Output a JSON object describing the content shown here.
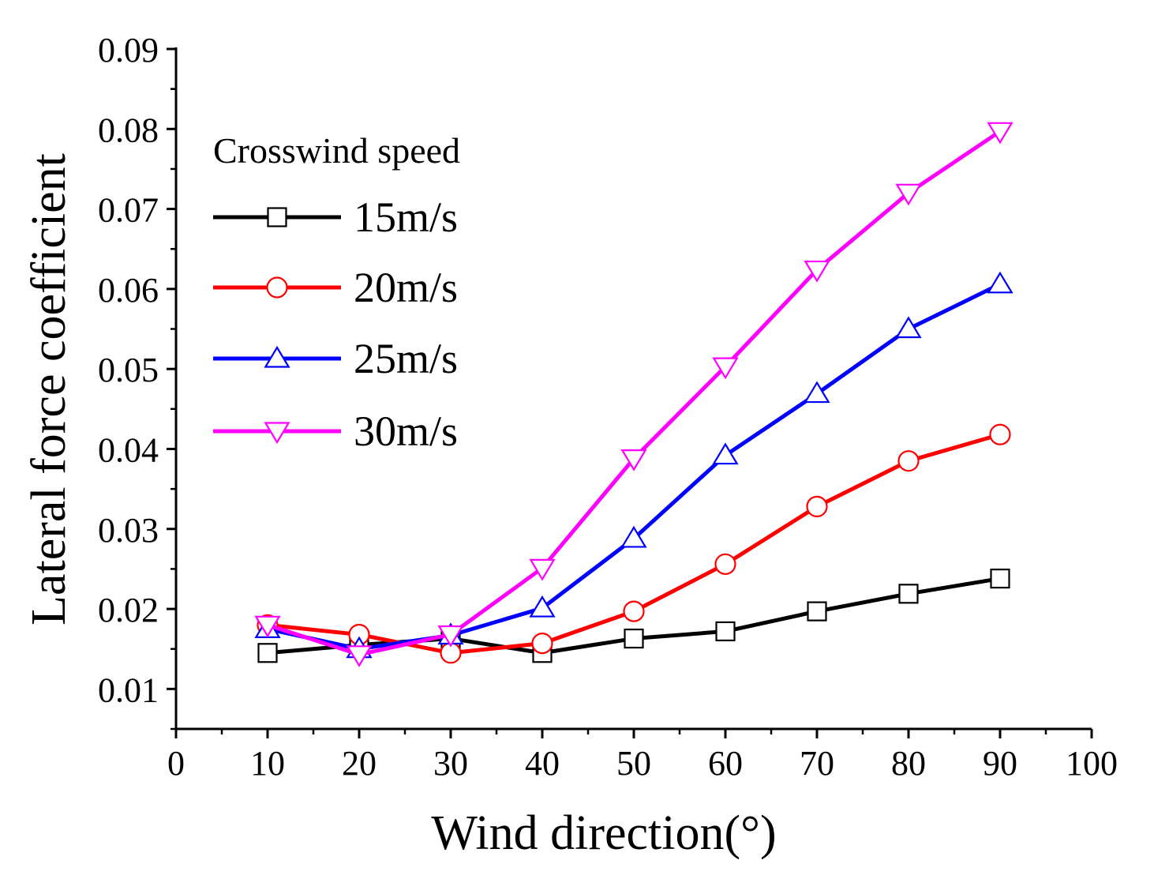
{
  "chart_data": {
    "type": "line",
    "title": "",
    "xlabel": "Wind direction(°)",
    "ylabel": "Lateral force coefficient",
    "xlim": [
      0,
      100
    ],
    "ylim": [
      0.005,
      0.09
    ],
    "xticks": [
      "0",
      "10",
      "20",
      "30",
      "40",
      "50",
      "60",
      "70",
      "80",
      "90",
      "100"
    ],
    "yticks": [
      "0.01",
      "0.02",
      "0.03",
      "0.04",
      "0.05",
      "0.06",
      "0.07",
      "0.08",
      "0.09"
    ],
    "legend_title": "Crosswind speed",
    "legend_position": "top-left",
    "x": [
      10,
      20,
      30,
      40,
      50,
      60,
      70,
      80,
      90
    ],
    "series": [
      {
        "name": "15m/s",
        "color": "#000000",
        "marker": "square",
        "values": [
          0.0145,
          0.0155,
          0.0163,
          0.0145,
          0.0163,
          0.0172,
          0.0197,
          0.0219,
          0.0238
        ]
      },
      {
        "name": "20m/s",
        "color": "#ff0000",
        "marker": "circle",
        "values": [
          0.018,
          0.0168,
          0.0145,
          0.0157,
          0.0197,
          0.0256,
          0.0328,
          0.0385,
          0.0418
        ]
      },
      {
        "name": "25m/s",
        "color": "#0000ff",
        "marker": "triangle-up",
        "values": [
          0.0175,
          0.015,
          0.0167,
          0.0201,
          0.0288,
          0.0392,
          0.0469,
          0.055,
          0.0606
        ]
      },
      {
        "name": "30m/s",
        "color": "#ff00ff",
        "marker": "triangle-down",
        "values": [
          0.018,
          0.0143,
          0.0168,
          0.0251,
          0.0388,
          0.0503,
          0.0624,
          0.072,
          0.0797
        ]
      }
    ]
  }
}
